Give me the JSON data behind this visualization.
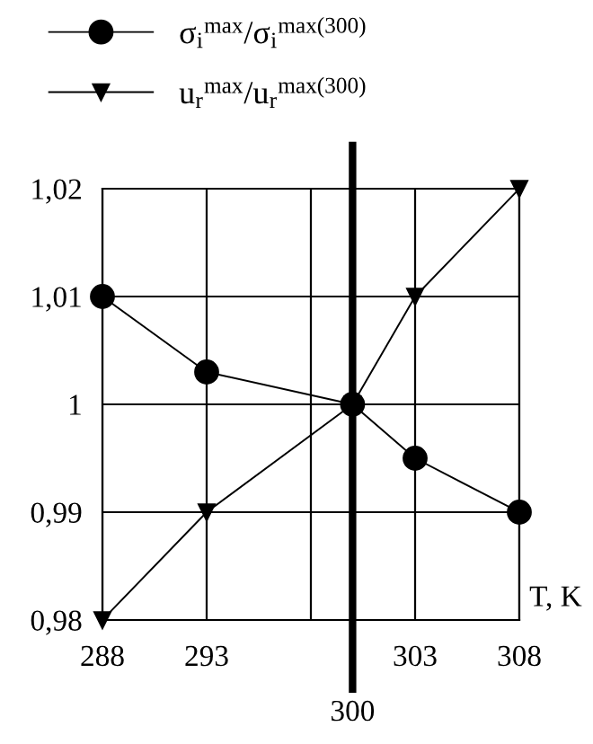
{
  "chart_data": {
    "type": "line",
    "xlabel": "T, K",
    "x": [
      288,
      293,
      300,
      303,
      308
    ],
    "series": [
      {
        "name": "σ$_{i}$$^{max}$/σ$_{i}$$^{max(300)}$",
        "color": "#000000",
        "marker": "circle",
        "values": [
          1.01,
          1.003,
          1,
          0.995,
          0.99
        ]
      },
      {
        "name": "u$_{r}$$^{max}$/u$_{r}$$^{max(300)}$",
        "color": "#000000",
        "marker": "triangle",
        "values": [
          0.98,
          0.99,
          1,
          1.01,
          1.02
        ]
      }
    ],
    "xlim": [
      288,
      308
    ],
    "xticks": [
      288,
      293,
      {
        "value": 298,
        "label": null
      },
      303,
      308
    ],
    "ylim": [
      0.98,
      1.02
    ],
    "yticks": [
      {
        "value": 0.98,
        "label": "0,98"
      },
      {
        "value": 0.99,
        "label": "0,99"
      },
      1,
      {
        "value": 1.01,
        "label": "1,01"
      },
      {
        "value": 1.02,
        "label": "1,02"
      }
    ],
    "ref_lines": [
      {
        "axis": "x",
        "value": 300,
        "label": "300",
        "color": "#000000"
      }
    ],
    "grid": true,
    "legend": "top left",
    "line_style": "solid"
  }
}
